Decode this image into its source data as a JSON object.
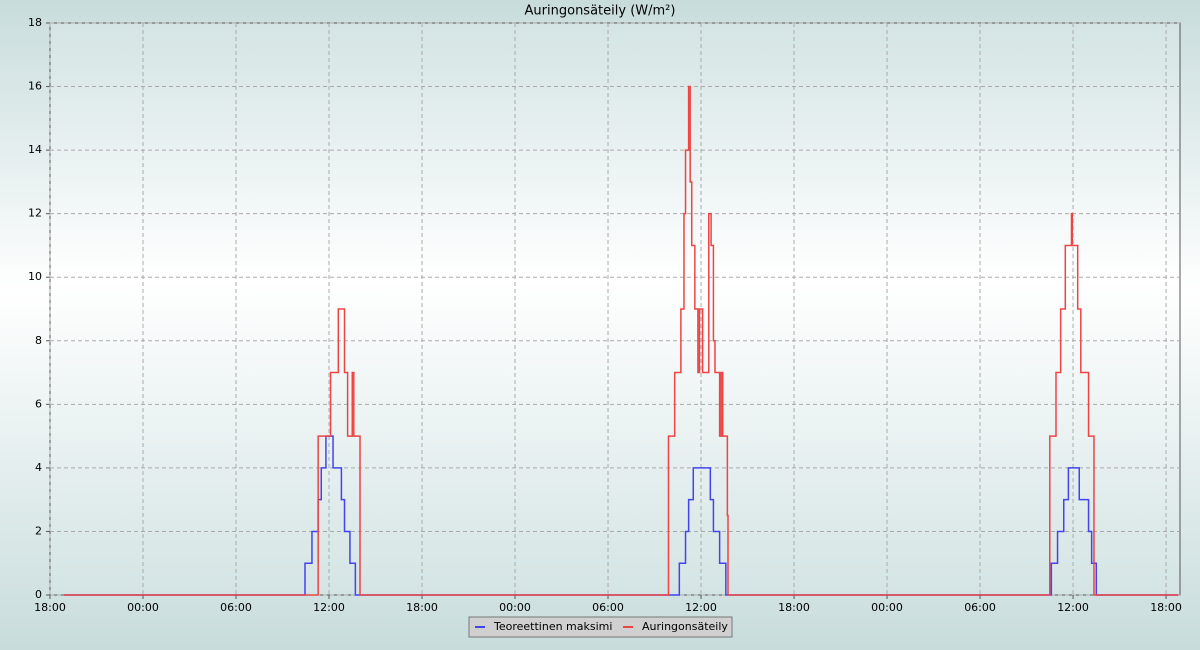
{
  "chart_data": {
    "type": "step",
    "title": "Auringonsäteily (W/m²)",
    "xlim": [
      0,
      72.9
    ],
    "ylim": [
      0,
      18
    ],
    "xticks": [
      {
        "value": 0,
        "label": "18:00"
      },
      {
        "value": 6,
        "label": "00:00"
      },
      {
        "value": 12,
        "label": "06:00"
      },
      {
        "value": 18,
        "label": "12:00"
      },
      {
        "value": 24,
        "label": "18:00"
      },
      {
        "value": 30,
        "label": "00:00"
      },
      {
        "value": 36,
        "label": "06:00"
      },
      {
        "value": 42,
        "label": "12:00"
      },
      {
        "value": 48,
        "label": "18:00"
      },
      {
        "value": 54,
        "label": "00:00"
      },
      {
        "value": 60,
        "label": "06:00"
      },
      {
        "value": 66,
        "label": "12:00"
      },
      {
        "value": 72,
        "label": "18:00"
      }
    ],
    "yticks": [
      0,
      2,
      4,
      6,
      8,
      10,
      12,
      14,
      16,
      18
    ],
    "grid": true,
    "legend": "bottom",
    "series": [
      {
        "name": "Teoreettinen maksimi",
        "color": "#4444ee",
        "x": [
          0.9,
          16.45,
          16.9,
          17.3,
          17.5,
          17.8,
          18.26,
          18.8,
          19.0,
          19.35,
          19.7,
          40.6,
          41.0,
          41.2,
          41.5,
          42.6,
          42.8,
          43.2,
          43.6,
          64.6,
          65.0,
          65.4,
          65.7,
          66.4,
          67.0,
          67.2,
          67.5,
          72.8
        ],
        "values": [
          0,
          1,
          2,
          3,
          4,
          5,
          4,
          3,
          2,
          1,
          0,
          1,
          2,
          3,
          4,
          3,
          2,
          1,
          0,
          1,
          2,
          3,
          4,
          3,
          2,
          1,
          0,
          0
        ]
      },
      {
        "name": "Auringonsäteily",
        "color": "#ee4444",
        "x": [
          0.9,
          17.3,
          18.1,
          18.6,
          19.0,
          19.2,
          19.5,
          19.6,
          20.0,
          39.9,
          40.3,
          40.7,
          40.9,
          41.0,
          41.2,
          41.3,
          41.4,
          41.6,
          41.8,
          41.9,
          42.1,
          42.5,
          42.65,
          42.8,
          42.9,
          43.2,
          43.3,
          43.4,
          43.7,
          43.74,
          64.5,
          64.9,
          65.2,
          65.5,
          65.9,
          65.95,
          66.3,
          66.5,
          67.0,
          67.35,
          72.8
        ],
        "values": [
          0,
          5,
          7,
          9,
          7,
          5,
          7,
          5,
          0,
          5,
          7,
          9,
          12,
          14,
          16,
          13,
          11,
          9,
          7,
          9,
          7,
          12,
          11,
          8,
          7,
          5,
          7,
          5,
          2.5,
          0,
          5,
          7,
          9,
          11,
          12,
          11,
          9,
          7,
          5,
          0,
          0
        ]
      }
    ]
  }
}
